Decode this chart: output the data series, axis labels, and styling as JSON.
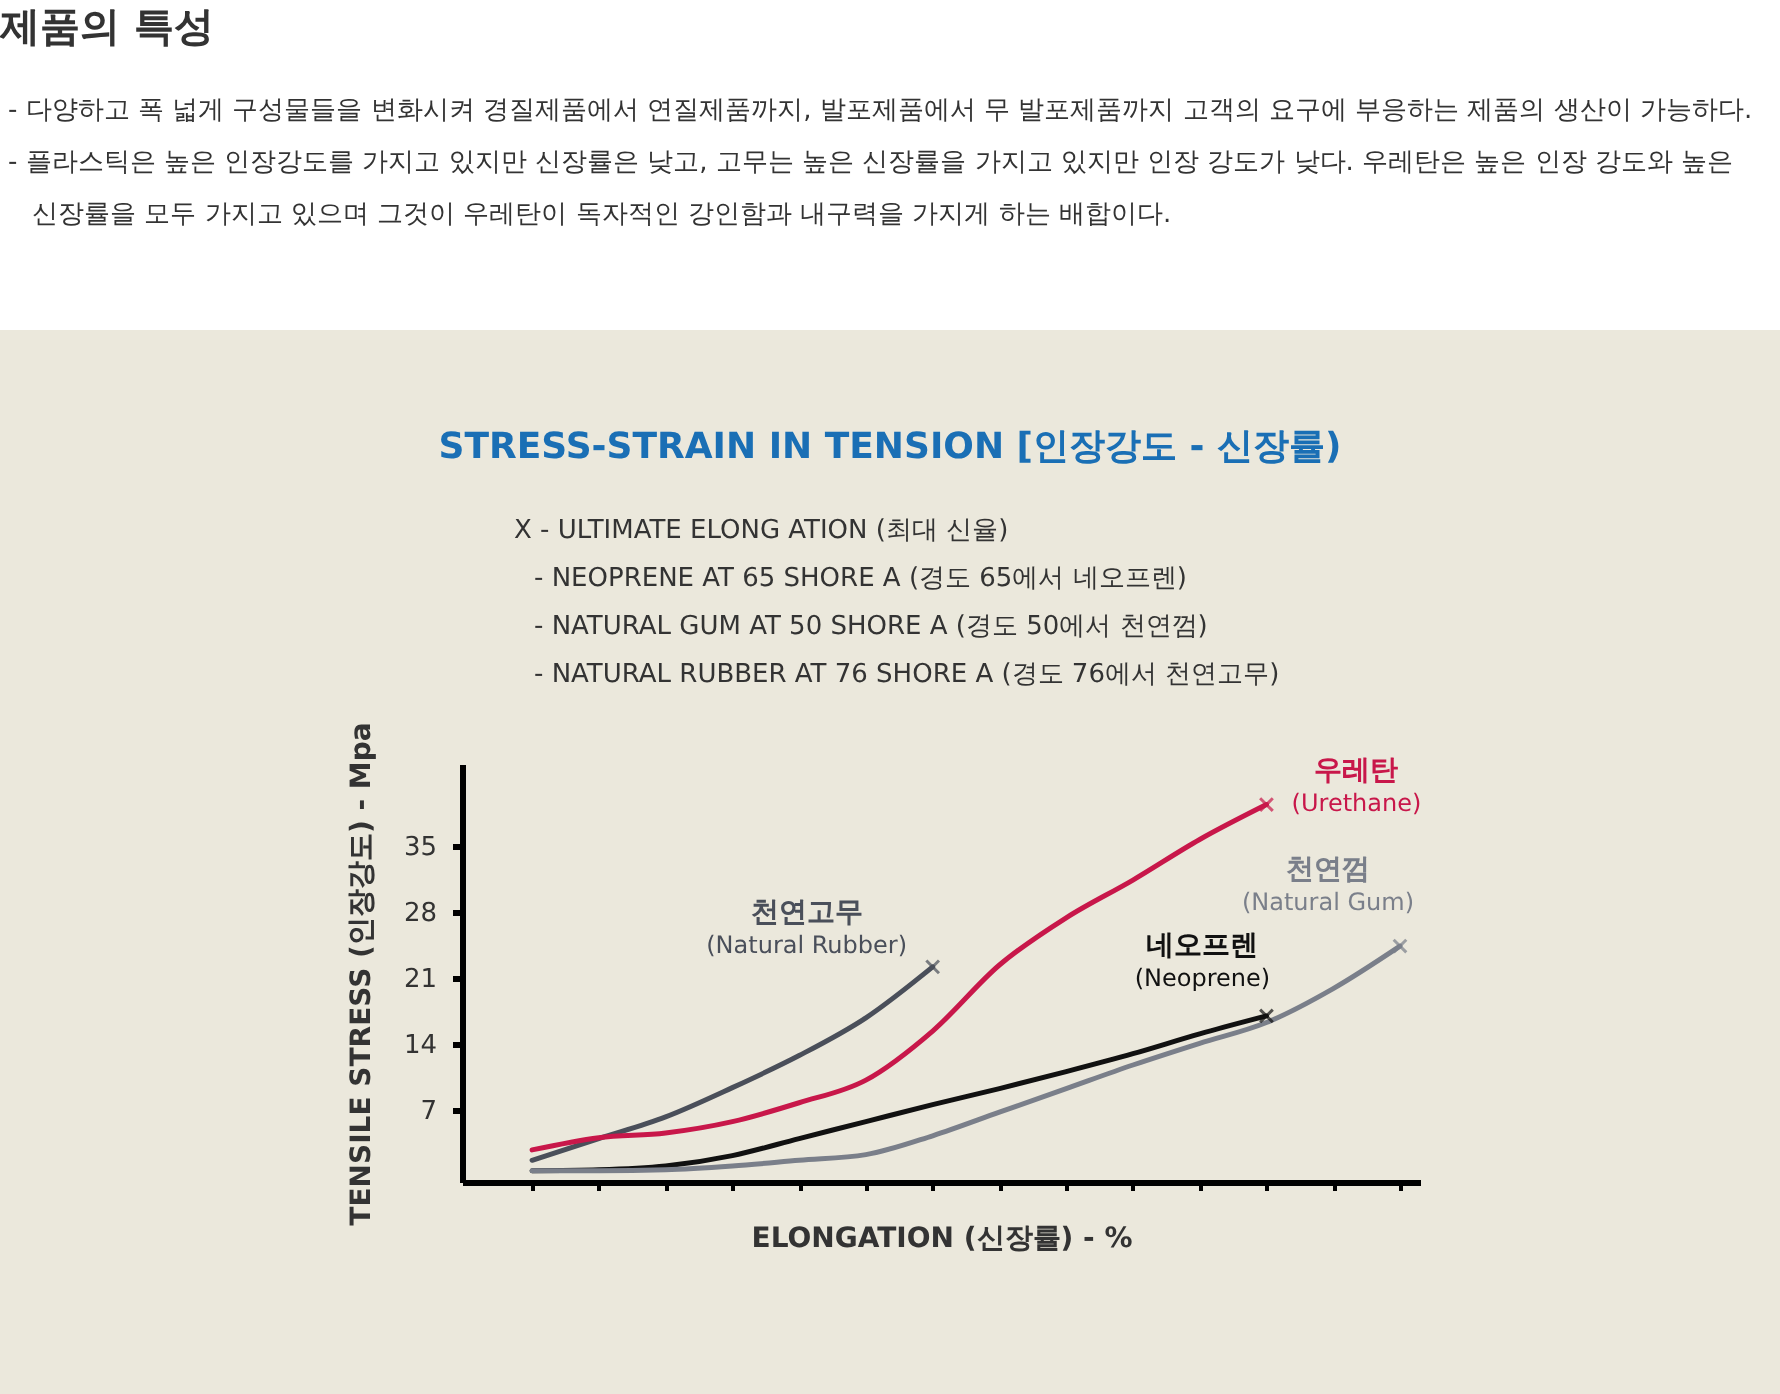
{
  "chart_data": {
    "type": "line",
    "title": "STRESS-STRAIN IN TENSION [인장강도 - 신장률)",
    "xlabel": "ELONGATION (신장률) - %",
    "ylabel": "TENSILE STRESS (인장강도) - Mpa",
    "annotations": [
      "제품의 특성",
      "- 다양하고 폭 넓게 구성물들을 변화시켜 경질제품에서 연질제품까지, 발포제품에서 무 발포제품까지 고객의 요구에 부응하는 제품의 생산이 가능하다.",
      "- 플라스틱은 높은 인장강도를 가지고 있지만 신장률은 낮고, 고무는 높은 신장률을 가지고 있지만 인장 강도가 낮다. 우레탄은 높은 인장 강도와 높은\n신장률을 모두 가지고 있으며 그것이 우레탄이 독자적인 강인함과 내구력을 가지게 하는 배합이다.",
      "X - ULTIMATE ELONG ATION (최대 신율)",
      "- NEOPRENE AT 65 SHORE A (경도 65에서 네오프렌)",
      "- NATURAL GUM AT 50 SHORE A (경도 50에서 천연껌)",
      "- NATURAL RUBBER AT 76 SHORE A (경도 76에서 천연고무)"
    ],
    "categories": [
      null,
      null,
      null,
      null,
      null,
      null,
      null,
      null,
      null,
      null,
      null,
      null,
      null,
      null
    ],
    "ylim": [
      -0.6,
      43.7
    ],
    "yticks": [
      7,
      14,
      21,
      28,
      35
    ],
    "tick_labels": "y",
    "grid": false,
    "legend": false,
    "line_style": "solid",
    "series": [
      {
        "name": "천연고무\n(Natural Rubber)",
        "color": "#4a4f5a",
        "values": [
          1.7,
          4.0,
          6.3,
          9.4,
          12.8,
          16.8,
          22.2,
          null,
          null,
          null,
          null,
          null,
          null,
          null
        ]
      },
      {
        "name": "우레탄\n(Urethane)",
        "color": "#c8174a",
        "values": [
          2.8,
          4.1,
          4.6,
          5.8,
          7.8,
          10.2,
          15.4,
          22.4,
          27.4,
          31.4,
          35.7,
          39.4,
          null,
          null
        ]
      },
      {
        "name": "네오프렌\n(Neoprene)",
        "color": "#111111",
        "values": [
          0.6,
          0.7,
          1.1,
          2.2,
          4.0,
          5.8,
          7.6,
          9.3,
          11.1,
          13.0,
          15.1,
          17.0,
          null,
          null
        ]
      },
      {
        "name": "천연껌\n(Natural Gum)",
        "color": "#7a7f8a",
        "values": [
          0.6,
          0.6,
          0.7,
          1.1,
          1.7,
          2.3,
          4.3,
          6.8,
          9.3,
          11.8,
          14.1,
          16.3,
          19.9,
          24.4
        ]
      }
    ]
  }
}
